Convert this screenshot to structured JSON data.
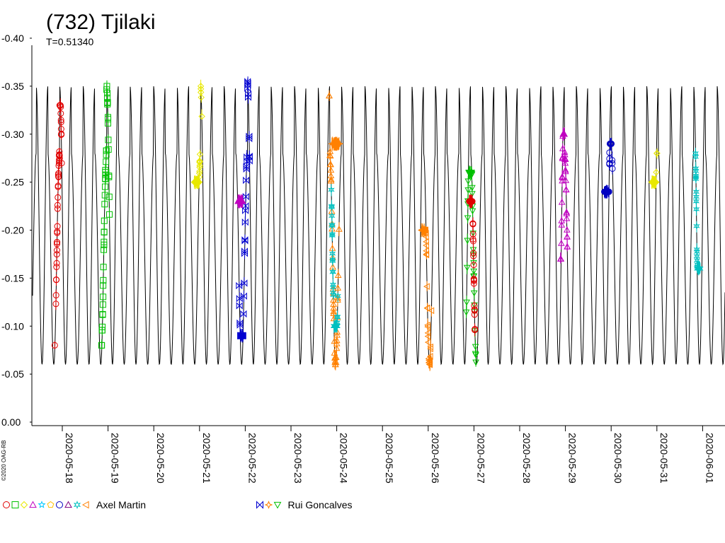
{
  "chart_data": {
    "type": "scatter",
    "title": "(732) Tjilaki",
    "subtitle": "T=0.51340",
    "copyright": "©2020 OAG-RB",
    "period_days": 0.5134,
    "y_ticks": [
      "-0.40",
      "-0.35",
      "-0.30",
      "-0.25",
      "-0.20",
      "-0.15",
      "-0.10",
      "-0.05",
      "0.00"
    ],
    "ylim": [
      -0.4,
      0.0
    ],
    "y_inverted": true,
    "x_ticks": [
      "2020-05-18",
      "2020-05-19",
      "2020-05-20",
      "2020-05-21",
      "2020-05-22",
      "2020-05-23",
      "2020-05-24",
      "2020-05-25",
      "2020-05-26",
      "2020-05-27",
      "2020-05-28",
      "2020-05-29",
      "2020-05-30",
      "2020-05-31",
      "2020-06-01"
    ],
    "xlim": [
      "2020-05-17 09:20",
      "2020-06-01 08:00"
    ],
    "model_curve": {
      "color": "#000000",
      "min": -0.35,
      "max": -0.06,
      "secondary_max": -0.28
    },
    "legend": [
      {
        "name": "Axel Martin",
        "markers": [
          "circle",
          "square",
          "diamond",
          "triangle-up",
          "star",
          "pentagon",
          "circle",
          "triangle-up",
          "cross-star",
          "triangle-left"
        ],
        "colors": [
          "#e00000",
          "#00c000",
          "#e8e800",
          "#c000c0",
          "#00c8ff",
          "#ffc000",
          "#0000c0",
          "#800080",
          "#00c0c0",
          "#ff8000"
        ]
      },
      {
        "name": "Rui Goncalves",
        "markers": [
          "bowtie",
          "star4",
          "triangle-down"
        ],
        "colors": [
          "#0000d0",
          "#ff8000",
          "#00c000"
        ]
      }
    ],
    "series": [
      {
        "name": "",
        "marker": "circle",
        "color": "#e00000",
        "date": "2020-05-18",
        "t_start": -0.15,
        "t_end": -0.02,
        "y_min": -0.33,
        "y_max": -0.08
      },
      {
        "name": "",
        "marker": "square",
        "color": "#00c000",
        "date": "2020-05-19",
        "t_start": -0.14,
        "t_end": 0.02,
        "y_min": -0.35,
        "y_max": -0.08
      },
      {
        "name": "",
        "marker": "diamond",
        "color": "#e8e800",
        "date": "2020-05-21",
        "t_start": -0.12,
        "t_end": 0.04,
        "y_min": -0.35,
        "y_max": -0.25
      },
      {
        "name": "",
        "marker": "bowtie",
        "color": "#0000d0",
        "date": "2020-05-22",
        "t_start": -0.14,
        "t_end": 0.1,
        "y_min": -0.36,
        "y_max": -0.09
      },
      {
        "name": "",
        "marker": "triangle-up",
        "color": "#c000c0",
        "date": "2020-05-22",
        "t_start": -0.16,
        "t_end": -0.06,
        "y_min": -0.31,
        "y_max": -0.23
      },
      {
        "name": "",
        "marker": "triangle-up",
        "color": "#ff8000",
        "date": "2020-05-24",
        "t_start": -0.16,
        "t_end": 0.04,
        "y_min": -0.34,
        "y_max": -0.06
      },
      {
        "name": "",
        "marker": "cross-star",
        "color": "#00c0c0",
        "date": "2020-05-24",
        "t_start": -0.12,
        "t_end": 0.02,
        "y_min": -0.33,
        "y_max": -0.1
      },
      {
        "name": "",
        "marker": "star4",
        "color": "#ff8000",
        "date": "2020-05-24",
        "t_start": -0.1,
        "t_end": 0.06,
        "y_min": -0.34,
        "y_max": -0.29
      },
      {
        "name": "",
        "marker": "triangle-left",
        "color": "#ff8000",
        "date": "2020-05-26",
        "t_start": -0.14,
        "t_end": 0.06,
        "y_min": -0.2,
        "y_max": -0.06
      },
      {
        "name": "",
        "marker": "triangle-down",
        "color": "#00c000",
        "date": "2020-05-27",
        "t_start": -0.16,
        "t_end": 0.04,
        "y_min": -0.26,
        "y_max": -0.05
      },
      {
        "name": "",
        "marker": "circle",
        "color": "#e00000",
        "date": "2020-05-27",
        "t_start": -0.1,
        "t_end": 0.02,
        "y_min": -0.23,
        "y_max": -0.06
      },
      {
        "name": "",
        "marker": "triangle-up",
        "color": "#c000c0",
        "date": "2020-05-29",
        "t_start": -0.1,
        "t_end": 0.04,
        "y_min": -0.3,
        "y_max": -0.17
      },
      {
        "name": "",
        "marker": "circle",
        "color": "#0000c0",
        "date": "2020-05-30",
        "t_start": -0.14,
        "t_end": 0.02,
        "y_min": -0.29,
        "y_max": -0.24
      },
      {
        "name": "",
        "marker": "diamond",
        "color": "#e8e800",
        "date": "2020-05-31",
        "t_start": -0.1,
        "t_end": 0.0,
        "y_min": -0.28,
        "y_max": -0.25
      },
      {
        "name": "",
        "marker": "cross-star",
        "color": "#00c0c0",
        "date": "2020-06-01",
        "t_start": -0.16,
        "t_end": -0.06,
        "y_min": -0.28,
        "y_max": -0.16
      }
    ]
  }
}
